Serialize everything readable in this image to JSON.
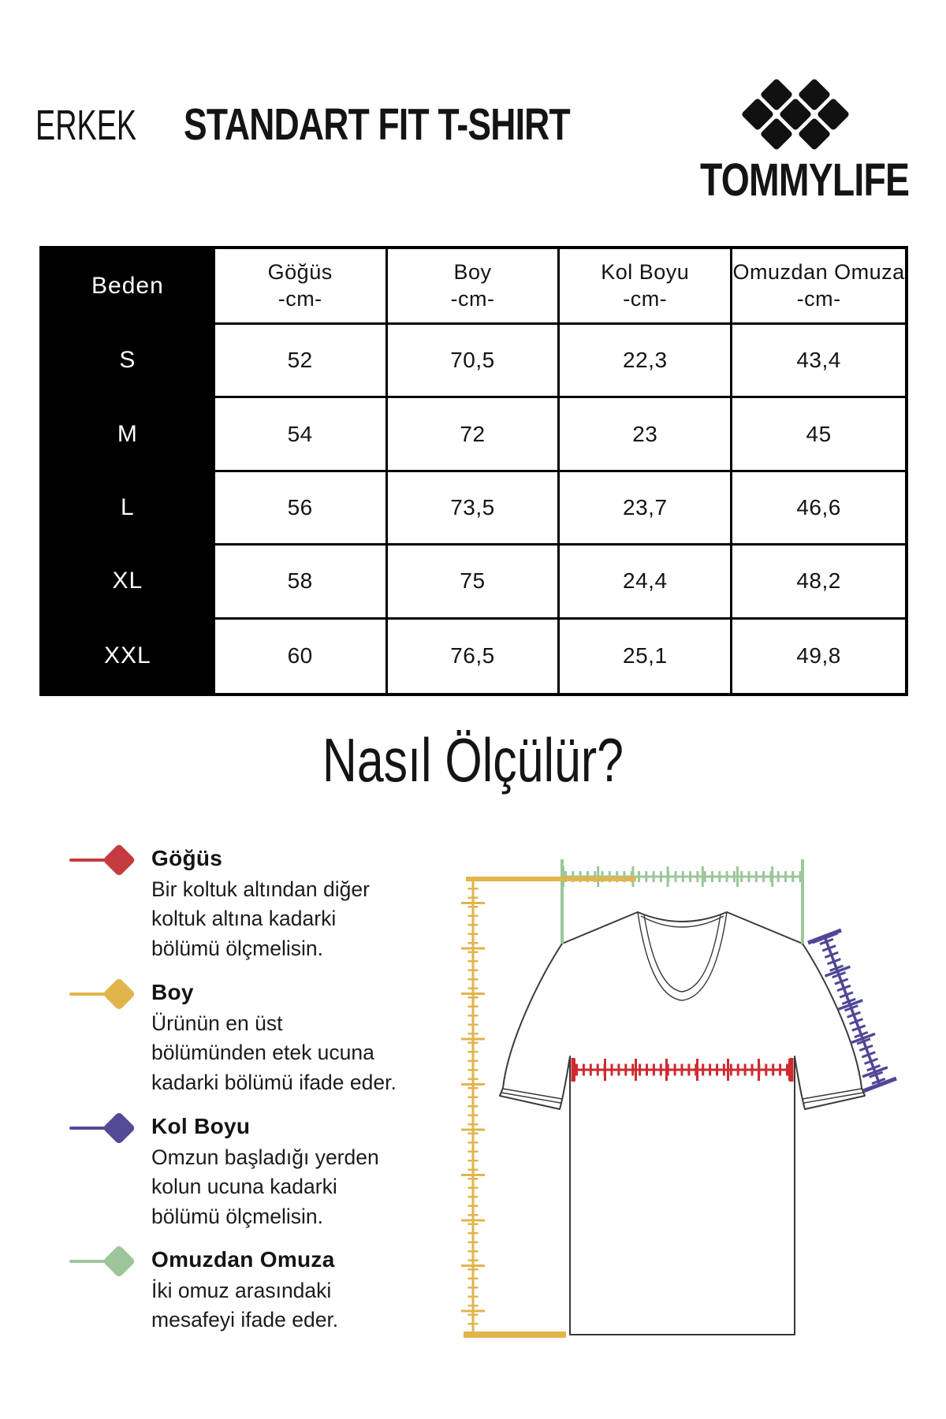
{
  "header": {
    "category": "ERKEK",
    "title": "STANDART FIT T-SHIRT",
    "brand": "TOMMYLIFE"
  },
  "size_table": {
    "corner_label": "Beden",
    "unit": "-cm-",
    "columns": [
      "Göğüs",
      "Boy",
      "Kol Boyu",
      "Omuzdan Omuza"
    ],
    "rows": [
      {
        "size": "S",
        "values": [
          "52",
          "70,5",
          "22,3",
          "43,4"
        ]
      },
      {
        "size": "M",
        "values": [
          "54",
          "72",
          "23",
          "45"
        ]
      },
      {
        "size": "L",
        "values": [
          "56",
          "73,5",
          "23,7",
          "46,6"
        ]
      },
      {
        "size": "XL",
        "values": [
          "58",
          "75",
          "24,4",
          "48,2"
        ]
      },
      {
        "size": "XXL",
        "values": [
          "60",
          "76,5",
          "25,1",
          "49,8"
        ]
      }
    ]
  },
  "how_to": {
    "title": "Nasıl Ölçülür?",
    "legend": [
      {
        "name": "Göğüs",
        "color": "#C43B3F",
        "description": "Bir koltuk altından diğer koltuk altına kadarki bölümü ölçmelisin."
      },
      {
        "name": "Boy",
        "color": "#E2B44C",
        "description": "Ürünün en üst bölümünden etek ucuna kadarki bölümü ifade eder."
      },
      {
        "name": "Kol Boyu",
        "color": "#534B96",
        "description": "Omzun başladığı yerden kolun ucuna kadarki bölümü ölçmelisin."
      },
      {
        "name": "Omuzdan Omuza",
        "color": "#9CC69A",
        "description": "İki omuz arasındaki mesafeyi ifade eder."
      }
    ]
  },
  "diagram": {
    "outline_color": "#3A3A3A",
    "ruler_colors": {
      "chest": "#CE2A30",
      "length": "#E2B44C",
      "sleeve": "#4F4796",
      "shoulder": "#9BC799"
    },
    "logo_color": "#111111"
  }
}
